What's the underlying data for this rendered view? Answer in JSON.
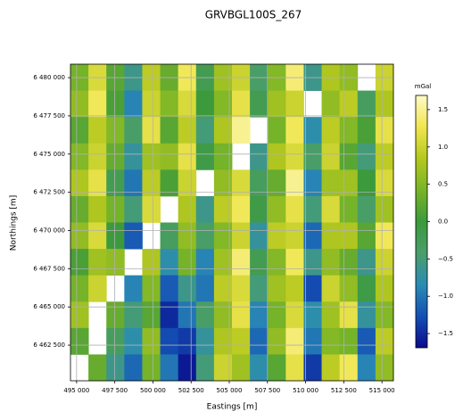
{
  "chart_data": {
    "type": "heatmap",
    "title": "GRVBGL100S_267",
    "xlabel": "Eastings [m]",
    "ylabel": "Northings [m]",
    "colorbar_label": "mGal",
    "x": [
      495188,
      496363,
      497538,
      498713,
      499888,
      501063,
      502238,
      503413,
      504588,
      505763,
      506938,
      508113,
      509288,
      510463,
      511638,
      512813,
      513988,
      515163
    ],
    "y": [
      6480017,
      6478291,
      6476565,
      6474839,
      6473113,
      6471387,
      6469661,
      6467935,
      6466209,
      6464483,
      6462757,
      6461031
    ],
    "z": [
      [
        0.4,
        1.1,
        0.2,
        -0.6,
        0.9,
        0.3,
        1.3,
        -0.2,
        0.7,
        1.0,
        -0.4,
        0.5,
        1.4,
        -0.6,
        0.8,
        0.6,
        null,
        1.0
      ],
      [
        0.6,
        1.3,
        0.1,
        -0.9,
        1.0,
        0.5,
        1.1,
        0.0,
        0.5,
        1.2,
        -0.2,
        0.7,
        1.0,
        null,
        0.6,
        0.9,
        -0.3,
        0.8
      ],
      [
        0.2,
        0.9,
        0.5,
        -0.4,
        1.2,
        0.2,
        0.9,
        -0.5,
        0.8,
        1.5,
        null,
        0.4,
        1.3,
        -0.8,
        0.9,
        0.5,
        0.1,
        1.2
      ],
      [
        0.5,
        1.0,
        0.3,
        -0.7,
        0.7,
        0.6,
        1.2,
        -0.1,
        0.4,
        null,
        -0.6,
        0.8,
        1.1,
        -0.4,
        1.0,
        0.2,
        -0.5,
        0.9
      ],
      [
        0.8,
        1.2,
        -0.2,
        -1.0,
        0.9,
        0.1,
        1.0,
        null,
        0.6,
        1.1,
        -0.3,
        0.3,
        1.5,
        -0.9,
        0.7,
        0.7,
        0.0,
        1.1
      ],
      [
        0.3,
        0.8,
        0.4,
        -0.5,
        1.1,
        null,
        0.8,
        -0.6,
        0.9,
        1.3,
        -0.1,
        0.6,
        1.2,
        -0.5,
        1.1,
        0.4,
        -0.4,
        0.7
      ],
      [
        0.6,
        1.1,
        0.0,
        -1.2,
        null,
        -0.3,
        0.6,
        -0.4,
        0.5,
        1.0,
        -0.7,
        0.9,
        1.0,
        -1.1,
        0.8,
        0.8,
        0.2,
        1.3
      ],
      [
        0.1,
        0.7,
        0.6,
        null,
        0.8,
        -0.8,
        0.4,
        -0.9,
        0.7,
        1.4,
        -0.2,
        0.5,
        1.3,
        -0.6,
        0.6,
        0.3,
        -0.6,
        1.0
      ],
      [
        0.4,
        1.0,
        null,
        -0.9,
        0.5,
        -1.2,
        -0.6,
        -1.0,
        0.9,
        1.1,
        -0.5,
        0.7,
        0.9,
        -1.3,
        1.0,
        0.6,
        -0.1,
        0.8
      ],
      [
        0.7,
        null,
        0.3,
        -0.5,
        0.2,
        -1.5,
        -1.0,
        -0.4,
        0.6,
        1.2,
        -0.9,
        0.4,
        1.1,
        -0.8,
        0.7,
        1.2,
        -0.7,
        0.5
      ],
      [
        0.2,
        null,
        -0.3,
        -0.8,
        0.6,
        -1.3,
        -1.4,
        -0.7,
        0.8,
        0.9,
        -1.1,
        0.6,
        1.4,
        -1.0,
        0.5,
        0.4,
        -1.2,
        0.9
      ],
      [
        null,
        0.3,
        -0.6,
        -1.1,
        0.4,
        -1.0,
        -1.6,
        -0.5,
        1.0,
        0.7,
        -0.8,
        0.2,
        1.2,
        -1.4,
        0.9,
        1.3,
        -0.9,
        0.6
      ]
    ],
    "xlim": [
      494600,
      515750
    ],
    "ylim": [
      6460170,
      6480880
    ],
    "clim": [
      -1.69,
      1.69
    ],
    "xticks": [
      {
        "value": 495000,
        "label": "495 000"
      },
      {
        "value": 497500,
        "label": "497 500"
      },
      {
        "value": 500000,
        "label": "500 000"
      },
      {
        "value": 502500,
        "label": "502 500"
      },
      {
        "value": 505000,
        "label": "505 000"
      },
      {
        "value": 507500,
        "label": "507 500"
      },
      {
        "value": 510000,
        "label": "510 000"
      },
      {
        "value": 512500,
        "label": "512 500"
      },
      {
        "value": 515000,
        "label": "515 000"
      }
    ],
    "yticks": [
      {
        "value": 6462500,
        "label": "6 462 500"
      },
      {
        "value": 6465000,
        "label": "6 465 000"
      },
      {
        "value": 6467500,
        "label": "6 467 500"
      },
      {
        "value": 6470000,
        "label": "6 470 000"
      },
      {
        "value": 6472500,
        "label": "6 472 500"
      },
      {
        "value": 6475000,
        "label": "6 475 000"
      },
      {
        "value": 6477500,
        "label": "6 477 500"
      },
      {
        "value": 6480000,
        "label": "6 480 000"
      }
    ],
    "cticks": [
      {
        "value": -1.5,
        "label": "−1.5"
      },
      {
        "value": -1,
        "label": "−1.0"
      },
      {
        "value": -0.5,
        "label": "−0.5"
      },
      {
        "value": 0,
        "label": "0.0"
      },
      0.5,
      {
        "value": 1,
        "label": "1.0"
      },
      1.5
    ],
    "colormap": [
      "#0a0a8c",
      "#1450b4",
      "#2a8cb4",
      "#4a9e6a",
      "#3c9a3c",
      "#78b428",
      "#b4c81e",
      "#f0e650",
      "#fffac8"
    ],
    "grid": true
  }
}
